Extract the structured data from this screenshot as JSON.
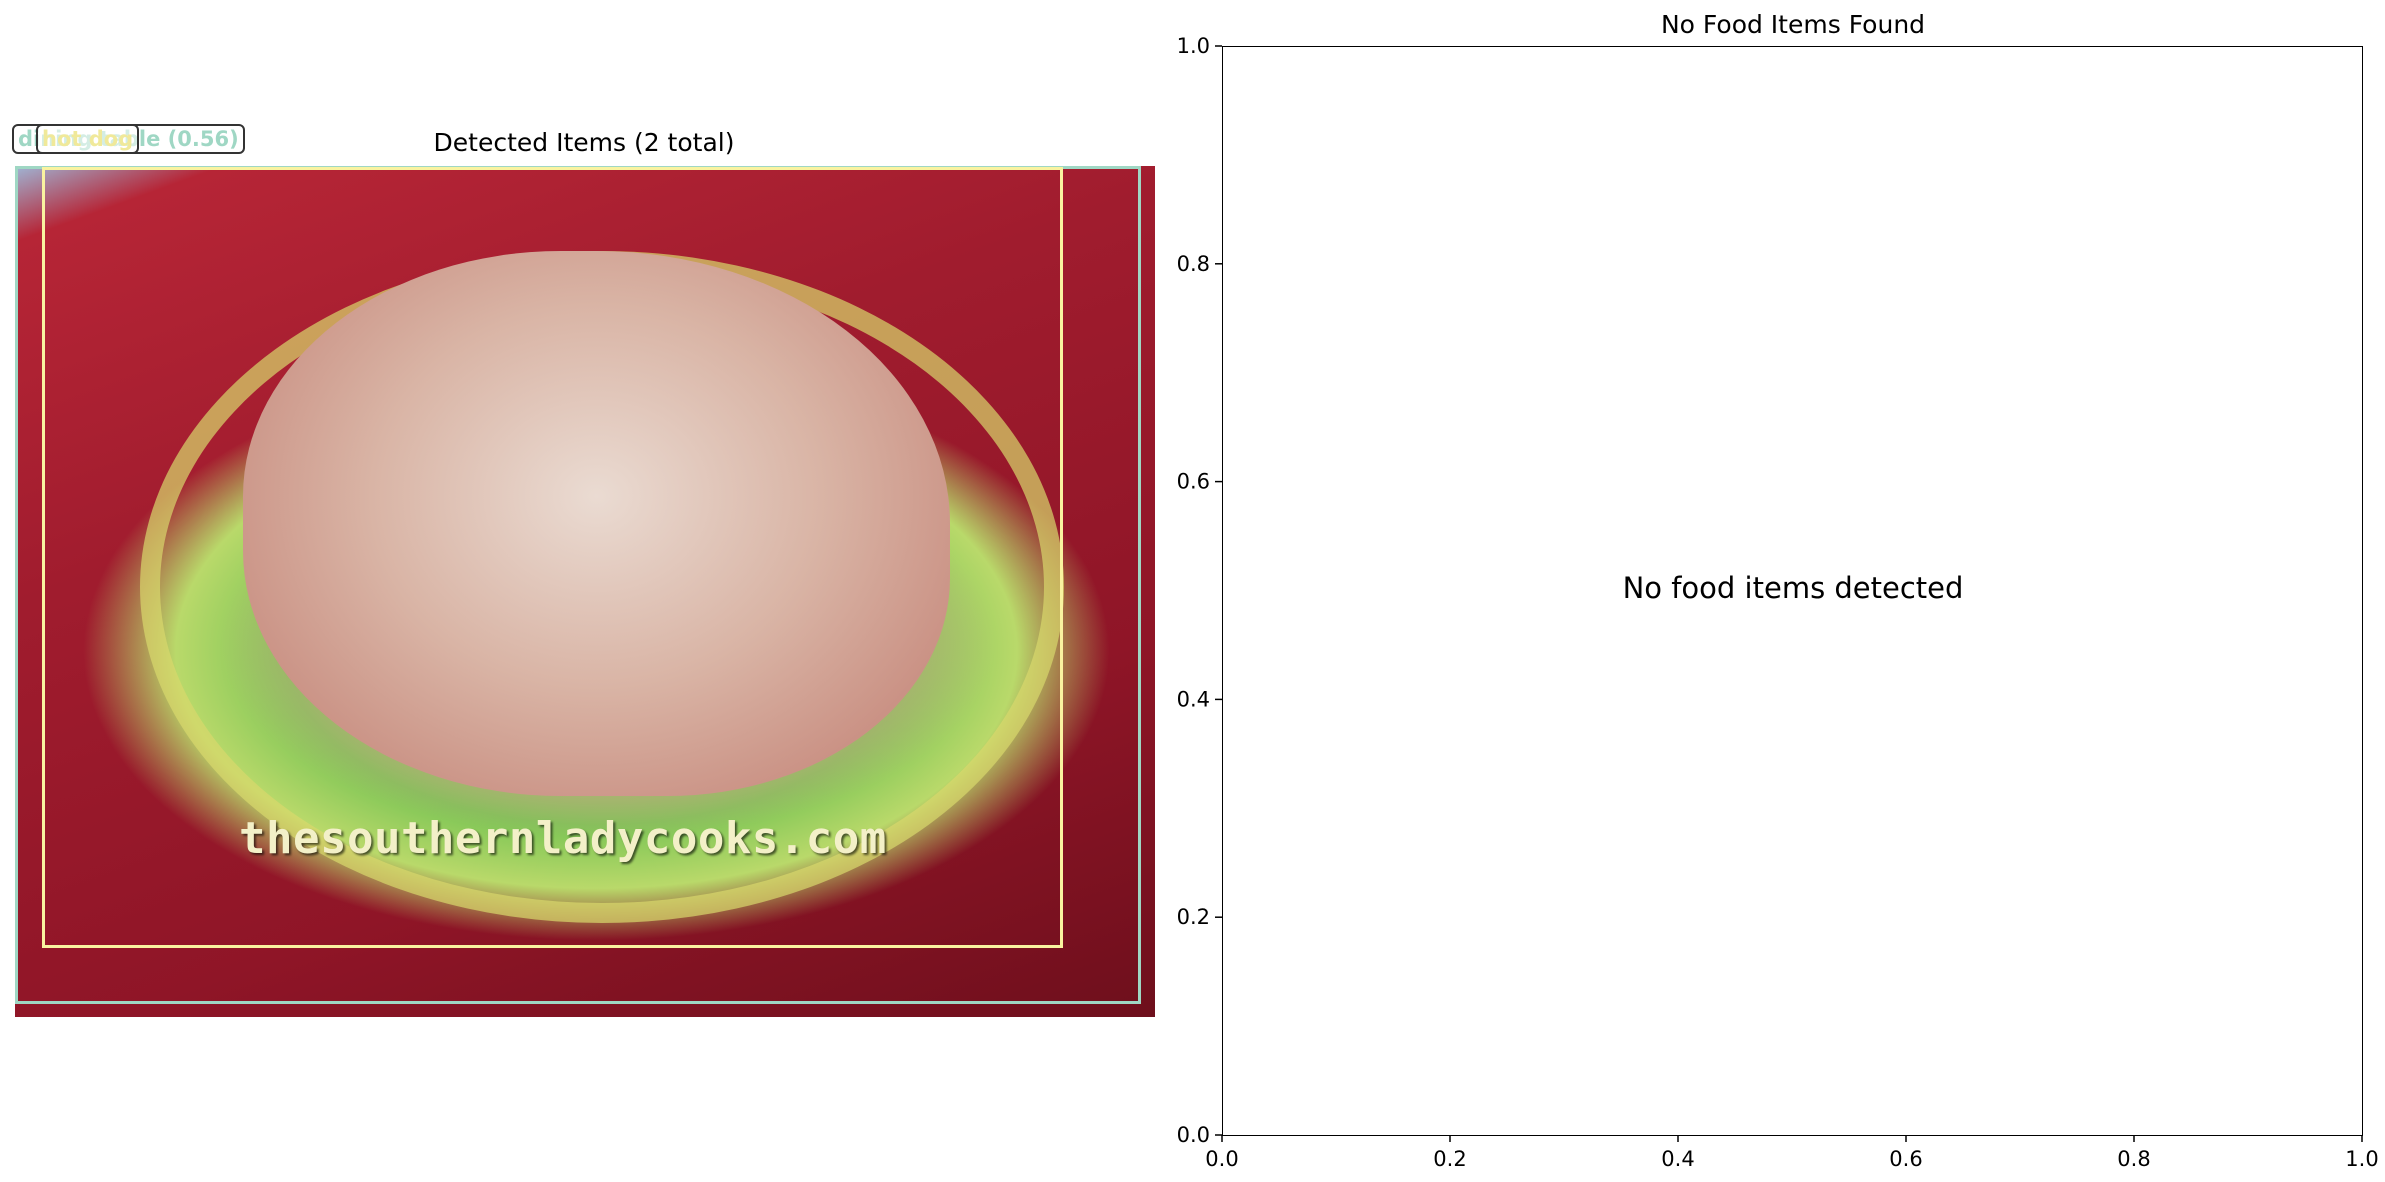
{
  "left_panel": {
    "title": "Detected Items (2 total)",
    "image": {
      "watermark": "thesouthernladycooks.com",
      "colors": {
        "plate": "#7bc454",
        "tray": "#a01c2e"
      }
    },
    "detections": [
      {
        "label": "dining table (0.56)",
        "color": "#9fd7c4"
      },
      {
        "label": "hot dog",
        "color": "#f9f3a0"
      }
    ]
  },
  "chart_data": {
    "type": "scatter",
    "title": "No Food Items Found",
    "annotation": "No food items detected",
    "xlabel": "",
    "ylabel": "",
    "xlim": [
      0.0,
      1.0
    ],
    "ylim": [
      0.0,
      1.0
    ],
    "xticks": [
      "0.0",
      "0.2",
      "0.4",
      "0.6",
      "0.8",
      "1.0"
    ],
    "yticks": [
      "0.0",
      "0.2",
      "0.4",
      "0.6",
      "0.8",
      "1.0"
    ],
    "series": []
  }
}
